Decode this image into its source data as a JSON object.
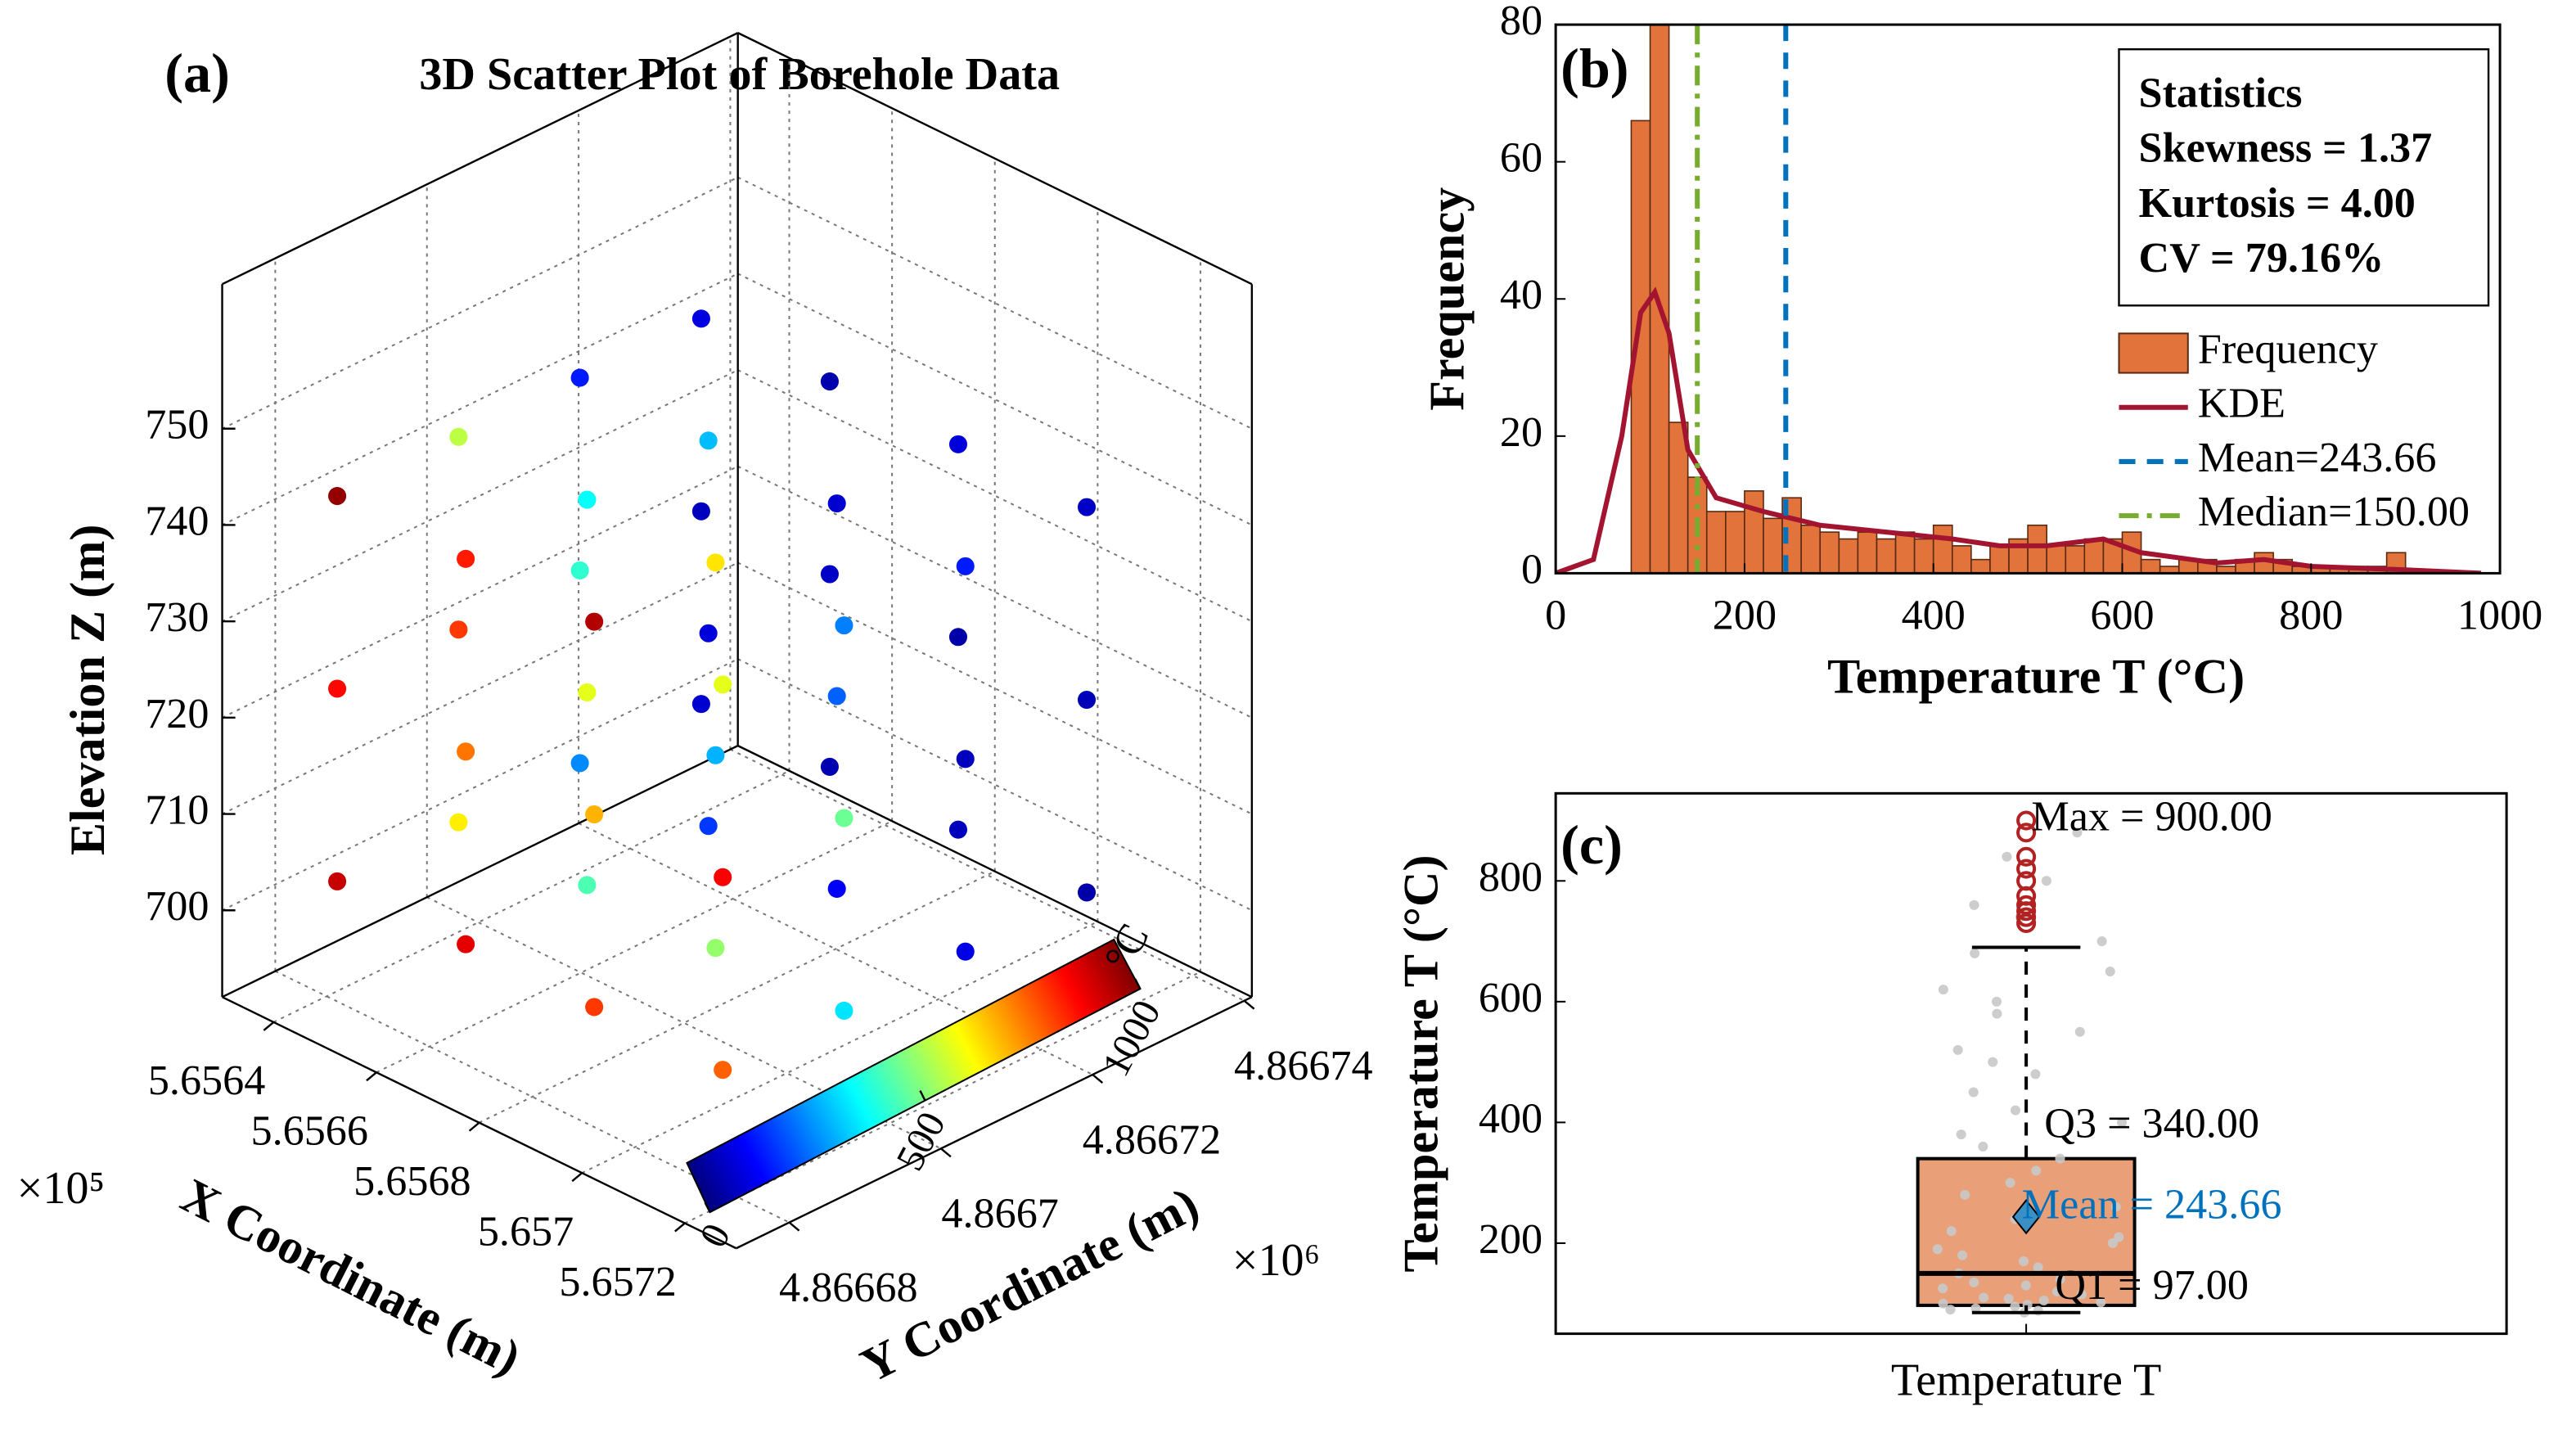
{
  "chart_data": [
    {
      "type": "scatter3d",
      "panel": "(a)",
      "title": "3D Scatter Plot of Borehole Data",
      "xlabel": "X Coordinate (m)",
      "ylabel": "Y Coordinate (m)",
      "zlabel": "Elevation Z (m)",
      "x_exponent_label": "×10⁵",
      "y_exponent_label": "×10⁶",
      "xlim": [
        565630,
        565730
      ],
      "ylim": [
        4866673,
        4866741
      ],
      "zlim": [
        691,
        765
      ],
      "xticks": [
        {
          "value": 565640,
          "label": "5.6564"
        },
        {
          "value": 565660,
          "label": "5.6566"
        },
        {
          "value": 565680,
          "label": "5.6568"
        },
        {
          "value": 565700,
          "label": "5.657"
        },
        {
          "value": 565720,
          "label": "5.6572"
        }
      ],
      "yticks": [
        {
          "value": 4866680,
          "label": "4.86668"
        },
        {
          "value": 4866700,
          "label": "4.8667"
        },
        {
          "value": 4866720,
          "label": "4.86672"
        },
        {
          "value": 4866740,
          "label": "4.86674"
        }
      ],
      "zticks": [
        700,
        710,
        720,
        730,
        740,
        750
      ],
      "grid": true,
      "colormap": "jet",
      "clim": [
        0,
        1000
      ],
      "cticks": [
        0,
        500,
        1000
      ],
      "clabel": "°C",
      "x": [
        565645,
        565645,
        565645,
        565645,
        565645,
        565645,
        565645,
        565645,
        565645,
        565645,
        565645,
        565645,
        565670,
        565670,
        565670,
        565670,
        565670,
        565670,
        565670,
        565670,
        565670,
        565670,
        565670,
        565670,
        565695,
        565695,
        565695,
        565695,
        565695,
        565695,
        565695,
        565695,
        565695,
        565695,
        565695,
        565695,
        565720,
        565720,
        565720,
        565720,
        565720,
        565720,
        565720,
        565720,
        565720,
        565720,
        565720,
        565720
      ],
      "y": [
        4866678,
        4866678,
        4866678,
        4866694,
        4866694,
        4866694,
        4866710,
        4866710,
        4866710,
        4866726,
        4866726,
        4866726,
        4866678,
        4866678,
        4866678,
        4866694,
        4866694,
        4866694,
        4866710,
        4866710,
        4866710,
        4866726,
        4866726,
        4866726,
        4866678,
        4866678,
        4866678,
        4866694,
        4866694,
        4866694,
        4866710,
        4866710,
        4866710,
        4866726,
        4866726,
        4866726,
        4866678,
        4866678,
        4866678,
        4866694,
        4866694,
        4866694,
        4866710,
        4866710,
        4866710,
        4866726,
        4866726,
        4866726
      ],
      "z": [
        705,
        725,
        745,
        705,
        725,
        745,
        705,
        725,
        745,
        705,
        725,
        745,
        705,
        725,
        745,
        705,
        725,
        745,
        705,
        725,
        745,
        705,
        725,
        745,
        705,
        725,
        745,
        705,
        725,
        745,
        705,
        725,
        745,
        705,
        725,
        745,
        705,
        725,
        745,
        705,
        725,
        745,
        705,
        725,
        745,
        705,
        725,
        745
      ],
      "c": [
        930,
        870,
        980,
        640,
        820,
        560,
        260,
        420,
        150,
        80,
        60,
        95,
        900,
        760,
        850,
        450,
        600,
        380,
        180,
        90,
        310,
        50,
        70,
        45,
        820,
        700,
        950,
        520,
        300,
        650,
        120,
        220,
        80,
        60,
        40,
        90,
        780,
        880,
        600,
        350,
        480,
        250,
        100,
        60,
        150,
        40,
        55,
        70
      ]
    },
    {
      "type": "histogram",
      "panel": "(b)",
      "xlabel": "Temperature T (°C)",
      "ylabel": "Frequency",
      "xlim": [
        0,
        1000
      ],
      "ylim": [
        0,
        80
      ],
      "xticks": [
        0,
        200,
        400,
        600,
        800,
        1000
      ],
      "yticks": [
        0,
        20,
        40,
        60,
        80
      ],
      "bins": [
        80,
        100,
        120,
        140,
        160,
        180,
        200,
        220,
        240,
        260,
        280,
        300,
        320,
        340,
        360,
        380,
        400,
        420,
        440,
        460,
        480,
        500,
        520,
        540,
        560,
        580,
        600,
        620,
        640,
        660,
        680,
        700,
        720,
        740,
        760,
        780,
        800,
        820,
        840,
        860,
        880,
        900
      ],
      "counts": [
        66,
        80,
        22,
        14,
        9,
        9,
        12,
        8,
        11,
        7,
        6,
        5,
        6,
        5,
        6,
        5,
        7,
        4,
        2,
        4,
        5,
        7,
        4,
        4,
        5,
        5,
        6,
        2,
        1,
        2,
        2,
        1,
        2,
        3,
        2,
        1,
        1,
        1,
        1,
        1,
        3
      ],
      "bar_name": "Frequency",
      "bar_color": "#e2733a",
      "kde": {
        "name": "KDE",
        "color": "#a2142f",
        "x": [
          0,
          40,
          70,
          90,
          105,
          120,
          140,
          170,
          220,
          280,
          350,
          420,
          470,
          520,
          580,
          620,
          700,
          750,
          800,
          900,
          980
        ],
        "y": [
          0,
          2,
          20,
          38,
          41,
          35,
          18,
          11,
          9,
          7,
          6,
          5,
          4,
          4,
          5,
          3,
          1.5,
          2,
          1,
          0.5,
          0
        ]
      },
      "reference_lines": [
        {
          "name": "Mean=243.66",
          "value": 243.66,
          "color": "#0072bd"
        },
        {
          "name": "Median=150.00",
          "value": 150,
          "color": "#77ac30"
        }
      ],
      "stats_box": [
        "Statistics",
        "Skewness = 1.37",
        "Kurtosis = 4.00",
        "CV = 79.16%"
      ]
    },
    {
      "type": "box",
      "panel": "(c)",
      "ylabel": "Temperature T (°C)",
      "categories": [
        "Temperature T"
      ],
      "ylim": [
        50,
        945
      ],
      "yticks": [
        200,
        400,
        600,
        800
      ],
      "box": {
        "whisker_low": 85,
        "q1": 97,
        "median": 150,
        "q3": 340,
        "whisker_high": 690,
        "mean": 243.66
      },
      "box_color": "#e99f78",
      "mean_color": "#3a8fc4",
      "outlier_color": "#b22222",
      "point_color": "#c8c8c8",
      "outliers": [
        730,
        740,
        750,
        760,
        775,
        800,
        820,
        840,
        880,
        900
      ],
      "points": [
        85,
        88,
        90,
        92,
        95,
        98,
        100,
        102,
        105,
        108,
        110,
        115,
        120,
        125,
        130,
        135,
        140,
        150,
        160,
        170,
        180,
        190,
        200,
        210,
        220,
        240,
        260,
        280,
        300,
        320,
        340,
        360,
        380,
        400,
        420,
        450,
        480,
        500,
        520,
        550,
        580,
        600,
        620,
        650,
        680,
        700,
        740,
        760,
        800,
        840,
        880
      ],
      "annotations": [
        {
          "label": "Max = 900.00",
          "value": 900,
          "color": "#000000"
        },
        {
          "label": "Q3 = 340.00",
          "value": 340,
          "color": "#000000"
        },
        {
          "label": "Mean = 243.66",
          "value": 243.66,
          "color": "#0072bd"
        },
        {
          "label": "Q1 = 97.00",
          "value": 97,
          "color": "#000000"
        }
      ]
    }
  ]
}
